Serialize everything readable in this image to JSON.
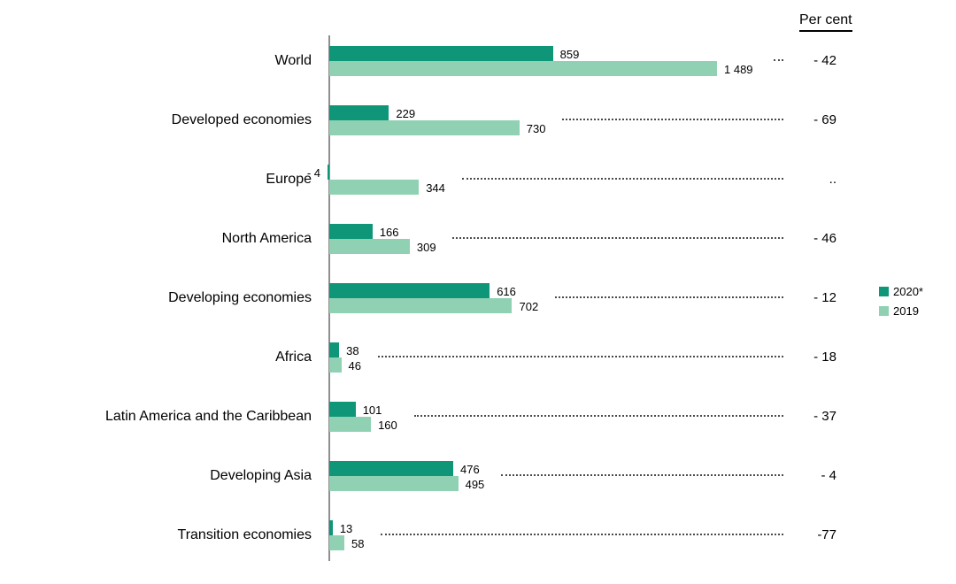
{
  "header": {
    "percent_label": "Per cent"
  },
  "legend": [
    {
      "label": "2020*",
      "color": "#0f9679"
    },
    {
      "label": "2019",
      "color": "#90d1b4"
    }
  ],
  "chart_data": {
    "type": "bar",
    "orientation": "horizontal",
    "title": "",
    "axis_title_right": "Per cent",
    "categories": [
      "World",
      "Developed economies",
      "Europe",
      "North America",
      "Developing economies",
      "Africa",
      "Latin America and the Caribbean",
      "Developing Asia",
      "Transition economies"
    ],
    "series": [
      {
        "name": "2020*",
        "color": "#0f9679",
        "values": [
          859,
          229,
          -4,
          166,
          616,
          38,
          101,
          476,
          13
        ],
        "labels": [
          "859",
          "229",
          "- 4",
          "166",
          "616",
          "38",
          "101",
          "476",
          "13"
        ]
      },
      {
        "name": "2019",
        "color": "#90d1b4",
        "values": [
          1489,
          730,
          344,
          309,
          702,
          46,
          160,
          495,
          58
        ],
        "labels": [
          "1 489",
          "730",
          "344",
          "309",
          "702",
          "46",
          "160",
          "495",
          "58"
        ]
      }
    ],
    "percent_change_labels": [
      "- 42",
      "- 69",
      "..",
      "- 46",
      "- 12",
      "- 18",
      "- 37",
      "- 4",
      "-77"
    ],
    "xlim": [
      0,
      1500
    ],
    "grid": false,
    "legend_position": "right"
  }
}
